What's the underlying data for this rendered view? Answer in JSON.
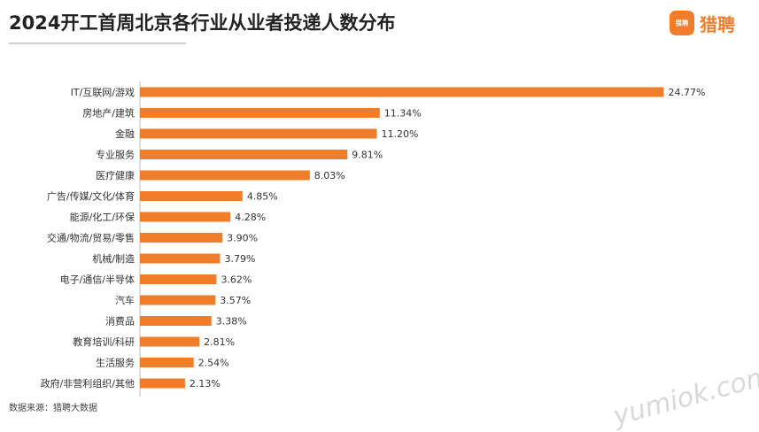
{
  "header": {
    "title": "2024开工首周北京各行业从业者投递人数分布",
    "logo_text": "猎聘",
    "logo_icon_text": "猎聘"
  },
  "footer": {
    "source": "数据来源：猎聘大数据"
  },
  "watermark": {
    "text": "yumiok.com"
  },
  "colors": {
    "bar": "#f07d2a",
    "title": "#222222"
  },
  "chart_data": {
    "type": "bar",
    "orientation": "horizontal",
    "title": "2024开工首周北京各行业从业者投递人数分布",
    "xlabel": "",
    "ylabel": "",
    "xlim": [
      0,
      25
    ],
    "grid": false,
    "categories": [
      "IT/互联网/游戏",
      "房地产/建筑",
      "金融",
      "专业服务",
      "医疗健康",
      "广告/传媒/文化/体育",
      "能源/化工/环保",
      "交通/物流/贸易/零售",
      "机械/制造",
      "电子/通信/半导体",
      "汽车",
      "消费品",
      "教育培训/科研",
      "生活服务",
      "政府/非营利组织/其他"
    ],
    "values": [
      24.77,
      11.34,
      11.2,
      9.81,
      8.03,
      4.85,
      4.28,
      3.9,
      3.79,
      3.62,
      3.57,
      3.38,
      2.81,
      2.54,
      2.13
    ],
    "labels": [
      "24.77%",
      "11.34%",
      "11.20%",
      "9.81%",
      "8.03%",
      "4.85%",
      "4.28%",
      "3.90%",
      "3.79%",
      "3.62%",
      "3.57%",
      "3.38%",
      "2.81%",
      "2.54%",
      "2.13%"
    ]
  }
}
